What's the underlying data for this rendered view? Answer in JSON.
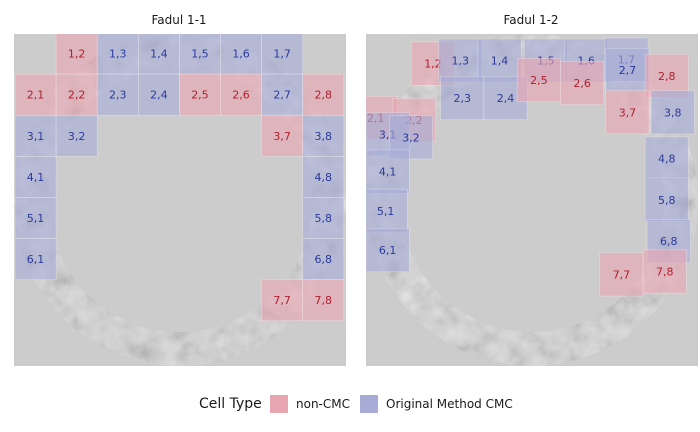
{
  "panels": [
    {
      "title": "Fadul 1-1",
      "cells": [
        {
          "label": "1,2",
          "type": "non-CMC"
        },
        {
          "label": "1,3",
          "type": "Original Method CMC"
        },
        {
          "label": "1,4",
          "type": "Original Method CMC"
        },
        {
          "label": "1,5",
          "type": "Original Method CMC"
        },
        {
          "label": "1,6",
          "type": "Original Method CMC"
        },
        {
          "label": "1,7",
          "type": "Original Method CMC"
        },
        {
          "label": "2,1",
          "type": "non-CMC"
        },
        {
          "label": "2,2",
          "type": "non-CMC"
        },
        {
          "label": "2,3",
          "type": "Original Method CMC"
        },
        {
          "label": "2,4",
          "type": "Original Method CMC"
        },
        {
          "label": "2,5",
          "type": "non-CMC"
        },
        {
          "label": "2,6",
          "type": "non-CMC"
        },
        {
          "label": "2,7",
          "type": "Original Method CMC"
        },
        {
          "label": "2,8",
          "type": "non-CMC"
        },
        {
          "label": "3,1",
          "type": "Original Method CMC"
        },
        {
          "label": "3,2",
          "type": "Original Method CMC"
        },
        {
          "label": "3,7",
          "type": "non-CMC"
        },
        {
          "label": "3,8",
          "type": "Original Method CMC"
        },
        {
          "label": "4,1",
          "type": "Original Method CMC"
        },
        {
          "label": "4,8",
          "type": "Original Method CMC"
        },
        {
          "label": "5,1",
          "type": "Original Method CMC"
        },
        {
          "label": "5,8",
          "type": "Original Method CMC"
        },
        {
          "label": "6,1",
          "type": "Original Method CMC"
        },
        {
          "label": "6,8",
          "type": "Original Method CMC"
        },
        {
          "label": "7,7",
          "type": "non-CMC"
        },
        {
          "label": "7,8",
          "type": "non-CMC"
        }
      ]
    },
    {
      "title": "Fadul 1-2",
      "cells": [
        {
          "label": "1,2",
          "type": "non-CMC"
        },
        {
          "label": "1,3",
          "type": "Original Method CMC"
        },
        {
          "label": "1,4",
          "type": "Original Method CMC"
        },
        {
          "label": "1,5",
          "type": "Original Method CMC"
        },
        {
          "label": "1,6",
          "type": "Original Method CMC"
        },
        {
          "label": "1,7",
          "type": "Original Method CMC"
        },
        {
          "label": "2,1",
          "type": "non-CMC"
        },
        {
          "label": "2,2",
          "type": "non-CMC"
        },
        {
          "label": "2,3",
          "type": "Original Method CMC"
        },
        {
          "label": "2,4",
          "type": "Original Method CMC"
        },
        {
          "label": "2,5",
          "type": "non-CMC"
        },
        {
          "label": "2,6",
          "type": "non-CMC"
        },
        {
          "label": "2,7",
          "type": "Original Method CMC"
        },
        {
          "label": "2,8",
          "type": "non-CMC"
        },
        {
          "label": "3,1",
          "type": "Original Method CMC"
        },
        {
          "label": "3,2",
          "type": "Original Method CMC"
        },
        {
          "label": "3,7",
          "type": "non-CMC"
        },
        {
          "label": "3,8",
          "type": "Original Method CMC"
        },
        {
          "label": "4,1",
          "type": "Original Method CMC"
        },
        {
          "label": "4,8",
          "type": "Original Method CMC"
        },
        {
          "label": "5,1",
          "type": "Original Method CMC"
        },
        {
          "label": "5,8",
          "type": "Original Method CMC"
        },
        {
          "label": "6,1",
          "type": "Original Method CMC"
        },
        {
          "label": "6,8",
          "type": "Original Method CMC"
        },
        {
          "label": "7,7",
          "type": "non-CMC"
        },
        {
          "label": "7,8",
          "type": "non-CMC"
        }
      ]
    }
  ],
  "legend": {
    "title": "Cell Type",
    "items": [
      {
        "label": "non-CMC",
        "type": "non-CMC"
      },
      {
        "label": "Original Method CMC",
        "type": "Original Method CMC"
      }
    ]
  },
  "colors": {
    "non-CMC": "#e8a6b1",
    "Original Method CMC": "#a7acd6",
    "non-CMC_text": "#b0202e",
    "Original Method CMC_text": "#2a3a9c",
    "panel_bg": "#cccccc"
  }
}
